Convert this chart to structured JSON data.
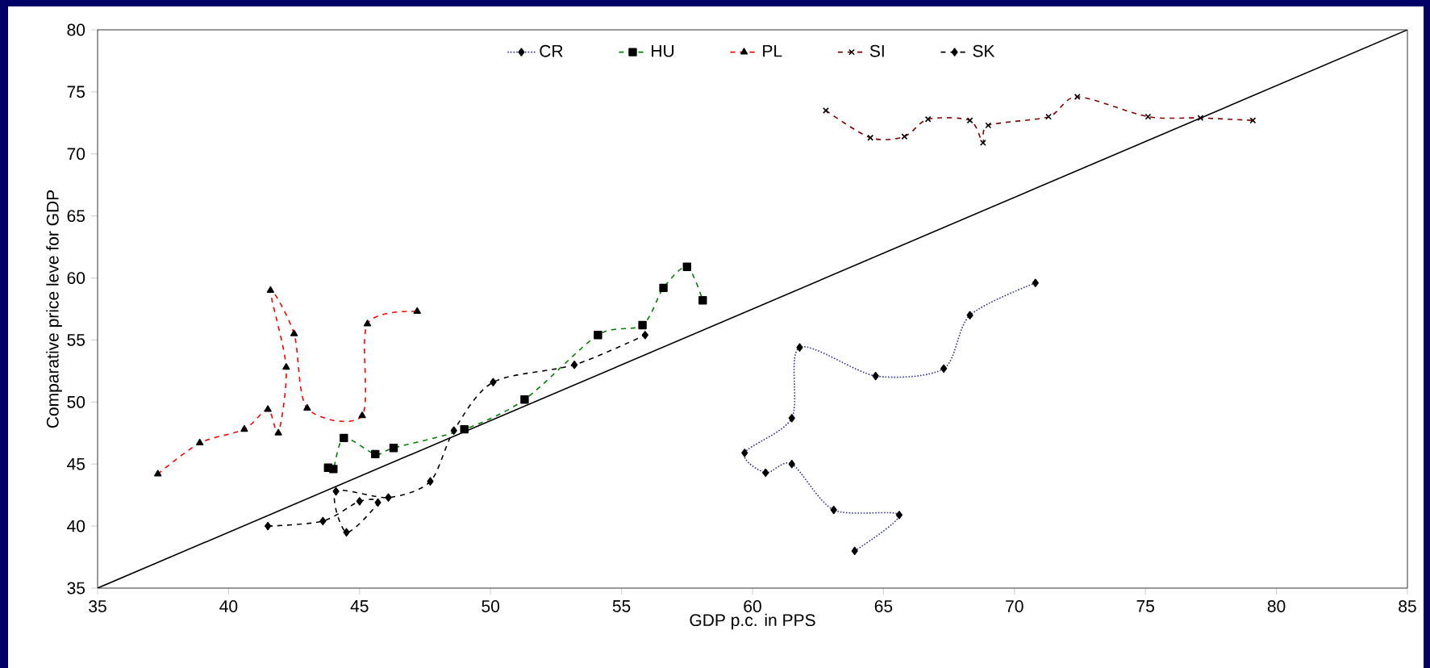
{
  "chart_data": {
    "type": "line",
    "xlabel": "GDP p.c. in PPS",
    "ylabel": "Comparative price leve for GDP",
    "xlim": [
      35,
      85
    ],
    "ylim": [
      35,
      80
    ],
    "xticks": [
      35,
      40,
      45,
      50,
      55,
      60,
      65,
      70,
      75,
      80,
      85
    ],
    "yticks": [
      35,
      40,
      45,
      50,
      55,
      60,
      65,
      70,
      75,
      80
    ],
    "grid": false,
    "legend": "top",
    "series": [
      {
        "name": "CR",
        "color": "#333399",
        "marker": "diamond",
        "line_style": "dotted",
        "x": [
          63.9,
          65.6,
          63.1,
          61.5,
          60.5,
          59.7,
          61.5,
          61.8,
          64.7,
          67.3,
          68.3,
          70.8
        ],
        "values": [
          38.0,
          40.9,
          41.3,
          45.0,
          44.3,
          45.9,
          48.7,
          54.4,
          52.1,
          52.7,
          57.0,
          59.6
        ]
      },
      {
        "name": "HU",
        "color": "#008000",
        "marker": "square",
        "line_style": "dashed",
        "x": [
          43.8,
          44.0,
          44.4,
          45.6,
          46.3,
          49.0,
          51.3,
          54.1,
          55.8,
          56.6,
          57.5,
          58.1
        ],
        "values": [
          44.7,
          44.6,
          47.1,
          45.8,
          46.3,
          47.8,
          50.2,
          55.4,
          56.2,
          59.2,
          60.9,
          58.2
        ]
      },
      {
        "name": "PL",
        "color": "#ff0000",
        "marker": "triangle",
        "line_style": "dashed",
        "x": [
          37.3,
          38.9,
          40.6,
          41.5,
          41.9,
          42.2,
          41.6,
          42.5,
          43.0,
          45.1,
          45.3,
          47.2
        ],
        "values": [
          44.2,
          46.7,
          47.8,
          49.4,
          47.5,
          52.8,
          59.0,
          55.5,
          49.5,
          48.9,
          56.3,
          57.3
        ]
      },
      {
        "name": "SI",
        "color": "#800000",
        "marker": "cross",
        "line_style": "dashed",
        "x": [
          62.8,
          64.5,
          65.8,
          66.7,
          68.3,
          68.8,
          69.0,
          71.3,
          72.4,
          75.1,
          77.1,
          79.1
        ],
        "values": [
          73.5,
          71.3,
          71.4,
          72.8,
          72.7,
          70.9,
          72.3,
          73.0,
          74.6,
          73.0,
          72.9,
          72.7
        ]
      },
      {
        "name": "SK",
        "color": "#000000",
        "marker": "diamond",
        "line_style": "dashed",
        "x": [
          41.5,
          43.6,
          45.0,
          45.7,
          44.5,
          44.1,
          46.1,
          47.7,
          48.6,
          50.1,
          53.2,
          55.9
        ],
        "values": [
          40.0,
          40.4,
          42.0,
          41.9,
          39.5,
          42.8,
          42.3,
          43.6,
          47.7,
          51.6,
          53.0,
          55.4
        ]
      },
      {
        "color": "#000000",
        "marker": "none",
        "line_style": "solid",
        "x": [
          35,
          85
        ],
        "values": [
          35,
          80
        ]
      }
    ]
  }
}
